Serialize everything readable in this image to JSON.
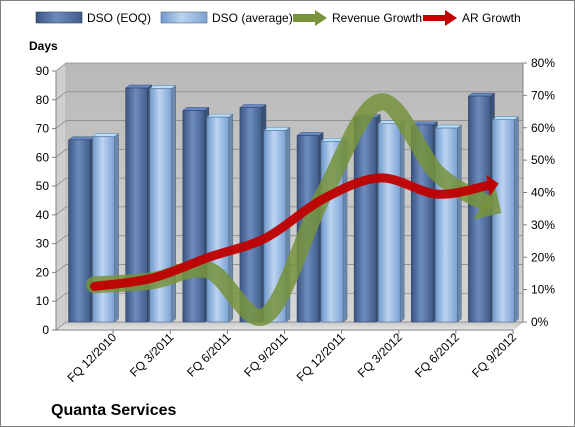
{
  "chart_data": {
    "type": "bar",
    "title": "",
    "company": "Quanta Services",
    "ylabel": "Days",
    "ylim": [
      0,
      90
    ],
    "ytick_step": 10,
    "y2lim": [
      0,
      0.8
    ],
    "y2tick_step": 0.1,
    "y2_format": "percent",
    "grid": true,
    "legend_position": "top",
    "categories": [
      "FQ 12/2010",
      "FQ 3/2011",
      "FQ 6/2011",
      "FQ 9/2011",
      "FQ 12/2011",
      "FQ 3/2012",
      "FQ 6/2012",
      "FQ 9/2012"
    ],
    "series": [
      {
        "name": "DSO (EOQ)",
        "type": "bar",
        "axis": "left",
        "color": "#4f6e9f",
        "values": [
          63.3,
          81.3,
          73.5,
          74.5,
          64.8,
          71,
          68.5,
          78.5
        ]
      },
      {
        "name": "DSO (average)",
        "type": "bar",
        "axis": "left",
        "color": "#8fb4e3",
        "values": [
          64.4,
          81.1,
          71.2,
          66.6,
          62.8,
          68.9,
          67.4,
          70.3
        ]
      },
      {
        "name": "Revenue Growth",
        "type": "line-arrow",
        "axis": "right",
        "color": "#77933c",
        "values": [
          0.115,
          0.127,
          0.16,
          0.02,
          0.39,
          0.68,
          0.46,
          0.35
        ]
      },
      {
        "name": "AR Growth",
        "type": "line-arrow",
        "axis": "right",
        "color": "#c00000",
        "values": [
          0.11,
          0.135,
          0.2,
          0.26,
          0.38,
          0.445,
          0.395,
          0.425
        ]
      }
    ]
  }
}
